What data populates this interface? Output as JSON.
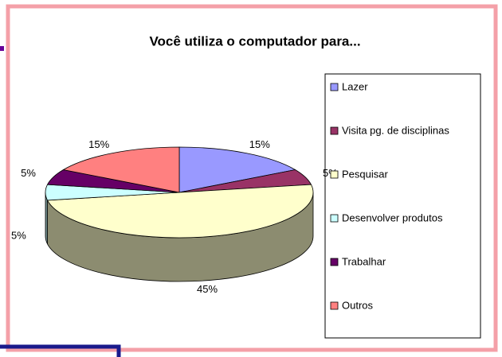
{
  "chart_data": {
    "type": "pie3d",
    "title": "Você utiliza o computador para...",
    "categories": [
      "Lazer",
      "Visita pg. de  disciplinas",
      "Pesquisar",
      "Desenvolver produtos",
      "Trabalhar",
      "Outros"
    ],
    "values": [
      15,
      5,
      45,
      5,
      5,
      15
    ],
    "value_labels": [
      "15%",
      "5%",
      "45%",
      "5%",
      "5%",
      "15%"
    ],
    "colors": [
      "#9999ff",
      "#993366",
      "#ffffcc",
      "#ccffff",
      "#660066",
      "#ff8080"
    ],
    "legend": "right"
  }
}
